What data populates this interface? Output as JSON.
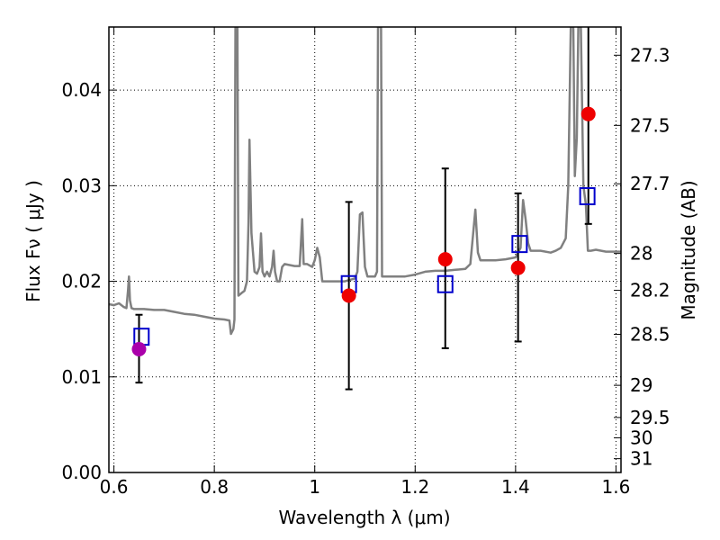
{
  "chart_data": {
    "type": "scatter",
    "title": "",
    "xlabel": "Wavelength  λ (μm)",
    "ylabel": "Flux  Fν  ( μJy )",
    "ylabel_right": "Magnitude (AB)",
    "xlim": [
      0.59,
      1.61
    ],
    "ylim": [
      0.0,
      0.0466
    ],
    "x_ticks": [
      0.6,
      0.8,
      1.0,
      1.2,
      1.4,
      1.6
    ],
    "x_tick_labels": [
      "0.6",
      "0.8",
      "1",
      "1.2",
      "1.4",
      "1.6"
    ],
    "y_ticks": [
      0.0,
      0.01,
      0.02,
      0.03,
      0.04
    ],
    "y_tick_labels": [
      "0.00",
      "0.01",
      "0.02",
      "0.03",
      "0.04"
    ],
    "right_ticks": [
      27.3,
      27.5,
      27.7,
      28,
      28.2,
      28.5,
      29,
      29.5,
      30,
      31
    ],
    "right_tick_labels": [
      "27.3",
      "27.5",
      "27.7",
      "28",
      "28.2",
      "28.5",
      "29",
      "29.5",
      "30",
      "31"
    ],
    "grid": true,
    "series": [
      {
        "kind": "line",
        "color": "#808080",
        "points": [
          [
            0.59,
            0.0176
          ],
          [
            0.6,
            0.0175
          ],
          [
            0.61,
            0.0177
          ],
          [
            0.62,
            0.0173
          ],
          [
            0.625,
            0.0172
          ],
          [
            0.628,
            0.019
          ],
          [
            0.63,
            0.0205
          ],
          [
            0.632,
            0.018
          ],
          [
            0.635,
            0.0172
          ],
          [
            0.64,
            0.0171
          ],
          [
            0.66,
            0.0171
          ],
          [
            0.68,
            0.017
          ],
          [
            0.7,
            0.017
          ],
          [
            0.72,
            0.0168
          ],
          [
            0.74,
            0.0166
          ],
          [
            0.76,
            0.0165
          ],
          [
            0.78,
            0.0163
          ],
          [
            0.8,
            0.0161
          ],
          [
            0.82,
            0.016
          ],
          [
            0.83,
            0.0159
          ],
          [
            0.833,
            0.0145
          ],
          [
            0.838,
            0.015
          ],
          [
            0.84,
            0.016
          ],
          [
            0.842,
            0.0466
          ],
          [
            0.846,
            0.0466
          ],
          [
            0.848,
            0.0185
          ],
          [
            0.855,
            0.0188
          ],
          [
            0.86,
            0.019
          ],
          [
            0.865,
            0.02
          ],
          [
            0.868,
            0.026
          ],
          [
            0.87,
            0.0348
          ],
          [
            0.874,
            0.025
          ],
          [
            0.88,
            0.021
          ],
          [
            0.885,
            0.0208
          ],
          [
            0.89,
            0.0215
          ],
          [
            0.893,
            0.025
          ],
          [
            0.896,
            0.021
          ],
          [
            0.9,
            0.0205
          ],
          [
            0.905,
            0.021
          ],
          [
            0.91,
            0.0205
          ],
          [
            0.915,
            0.0215
          ],
          [
            0.918,
            0.0232
          ],
          [
            0.921,
            0.021
          ],
          [
            0.925,
            0.02
          ],
          [
            0.93,
            0.02
          ],
          [
            0.935,
            0.0215
          ],
          [
            0.94,
            0.0218
          ],
          [
            0.96,
            0.0216
          ],
          [
            0.97,
            0.0216
          ],
          [
            0.975,
            0.0265
          ],
          [
            0.978,
            0.0218
          ],
          [
            0.985,
            0.0218
          ],
          [
            0.995,
            0.0215
          ],
          [
            1.0,
            0.0222
          ],
          [
            1.005,
            0.0235
          ],
          [
            1.01,
            0.0225
          ],
          [
            1.015,
            0.02
          ],
          [
            1.02,
            0.02
          ],
          [
            1.04,
            0.02
          ],
          [
            1.06,
            0.02
          ],
          [
            1.08,
            0.0203
          ],
          [
            1.085,
            0.021
          ],
          [
            1.09,
            0.027
          ],
          [
            1.095,
            0.0272
          ],
          [
            1.1,
            0.0215
          ],
          [
            1.105,
            0.0205
          ],
          [
            1.11,
            0.0205
          ],
          [
            1.12,
            0.0205
          ],
          [
            1.124,
            0.021
          ],
          [
            1.126,
            0.0466
          ],
          [
            1.132,
            0.0466
          ],
          [
            1.134,
            0.0205
          ],
          [
            1.14,
            0.0205
          ],
          [
            1.16,
            0.0205
          ],
          [
            1.18,
            0.0205
          ],
          [
            1.2,
            0.0207
          ],
          [
            1.22,
            0.021
          ],
          [
            1.24,
            0.0211
          ],
          [
            1.26,
            0.0211
          ],
          [
            1.28,
            0.0212
          ],
          [
            1.3,
            0.0213
          ],
          [
            1.31,
            0.0218
          ],
          [
            1.32,
            0.0275
          ],
          [
            1.325,
            0.023
          ],
          [
            1.33,
            0.0222
          ],
          [
            1.34,
            0.0222
          ],
          [
            1.36,
            0.0222
          ],
          [
            1.38,
            0.0223
          ],
          [
            1.4,
            0.0225
          ],
          [
            1.41,
            0.0235
          ],
          [
            1.415,
            0.0285
          ],
          [
            1.42,
            0.0265
          ],
          [
            1.425,
            0.024
          ],
          [
            1.43,
            0.0232
          ],
          [
            1.45,
            0.0232
          ],
          [
            1.47,
            0.023
          ],
          [
            1.48,
            0.0232
          ],
          [
            1.49,
            0.0235
          ],
          [
            1.5,
            0.0245
          ],
          [
            1.505,
            0.03
          ],
          [
            1.51,
            0.0466
          ],
          [
            1.515,
            0.0466
          ],
          [
            1.518,
            0.031
          ],
          [
            1.522,
            0.035
          ],
          [
            1.525,
            0.0466
          ],
          [
            1.53,
            0.0466
          ],
          [
            1.535,
            0.03
          ],
          [
            1.54,
            0.028
          ],
          [
            1.544,
            0.0232
          ],
          [
            1.55,
            0.0232
          ],
          [
            1.56,
            0.0233
          ],
          [
            1.58,
            0.0231
          ],
          [
            1.6,
            0.0231
          ],
          [
            1.61,
            0.0231
          ]
        ]
      },
      {
        "kind": "squares",
        "color": "#0000cc",
        "points": [
          [
            0.655,
            0.0142
          ],
          [
            1.068,
            0.0197
          ],
          [
            1.26,
            0.0197
          ],
          [
            1.408,
            0.0239
          ],
          [
            1.543,
            0.0289
          ]
        ]
      },
      {
        "kind": "points",
        "points": [
          {
            "x": 0.65,
            "y": 0.0129,
            "color": "#aa00aa",
            "yerr_low": 0.0094,
            "yerr_high": 0.0165
          },
          {
            "x": 1.068,
            "y": 0.0185,
            "color": "#ee0000",
            "yerr_low": 0.0087,
            "yerr_high": 0.0283
          },
          {
            "x": 1.26,
            "y": 0.0223,
            "color": "#ee0000",
            "yerr_low": 0.013,
            "yerr_high": 0.0318
          },
          {
            "x": 1.405,
            "y": 0.0214,
            "color": "#ee0000",
            "yerr_low": 0.0137,
            "yerr_high": 0.0292
          },
          {
            "x": 1.545,
            "y": 0.0375,
            "color": "#ee0000",
            "yerr_low": 0.026,
            "yerr_high": 0.0466
          }
        ]
      }
    ]
  }
}
